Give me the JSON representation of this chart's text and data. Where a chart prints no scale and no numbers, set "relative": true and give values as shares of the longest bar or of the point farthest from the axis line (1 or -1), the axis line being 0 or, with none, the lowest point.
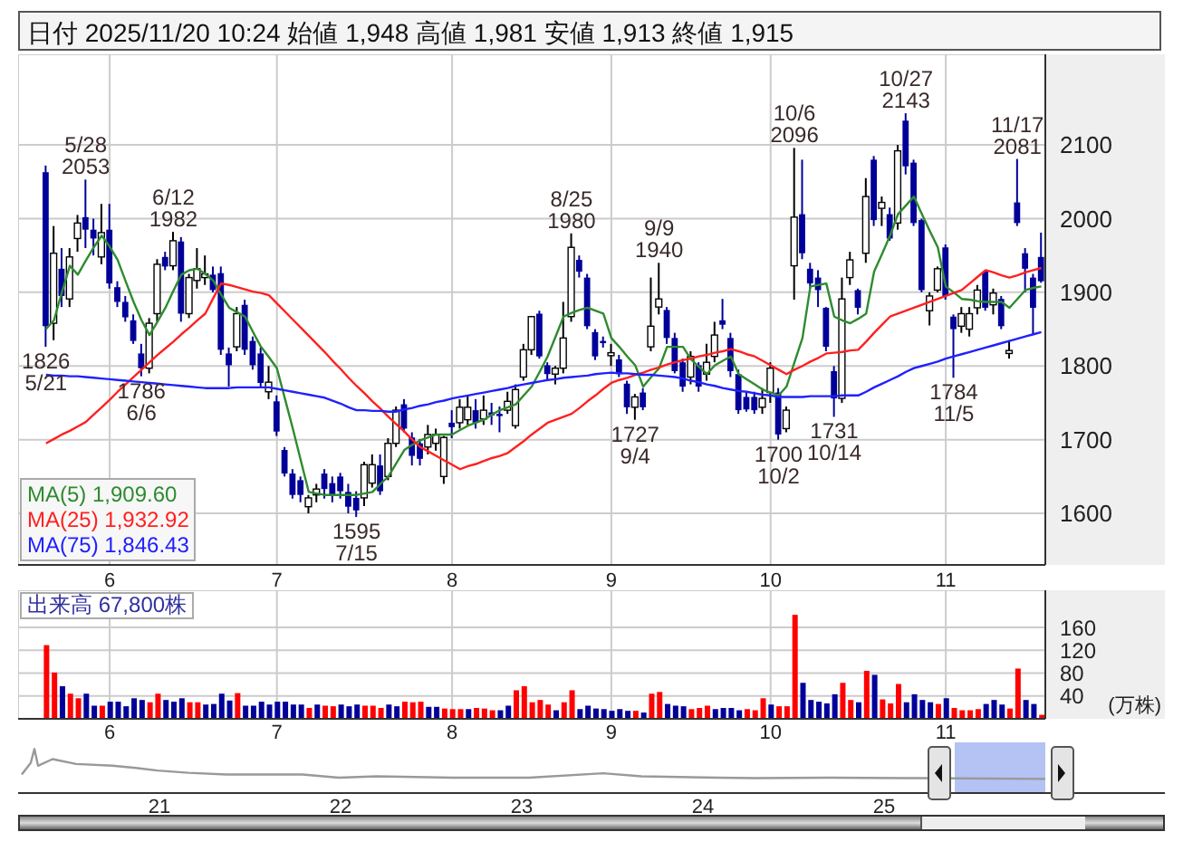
{
  "chart_data": [
    {
      "type": "candlestick",
      "title": "日付 2025/11/20 10:24 始値 1,948 高値 1,981 安値 1,913 終値 1,915",
      "categories": [
        null,
        null,
        null,
        null,
        null,
        null,
        null,
        null,
        "6",
        null,
        null,
        null,
        null,
        null,
        null,
        null,
        null,
        null,
        null,
        null,
        null,
        null,
        null,
        null,
        null,
        null,
        null,
        null,
        null,
        "7",
        null,
        null,
        null,
        null,
        null,
        null,
        null,
        null,
        null,
        null,
        null,
        null,
        null,
        null,
        null,
        null,
        null,
        null,
        null,
        null,
        null,
        "8",
        null,
        null,
        null,
        null,
        null,
        null,
        null,
        null,
        null,
        null,
        null,
        null,
        null,
        null,
        null,
        null,
        null,
        null,
        null,
        "9",
        null,
        null,
        null,
        null,
        null,
        null,
        null,
        null,
        null,
        null,
        null,
        null,
        null,
        null,
        null,
        null,
        null,
        null,
        null,
        "10",
        null,
        null,
        null,
        null,
        null,
        null,
        null,
        null,
        null,
        null,
        null,
        null,
        null,
        null,
        null,
        null,
        null,
        null,
        null,
        null,
        null,
        "11",
        null,
        null,
        null,
        null,
        null,
        null,
        null,
        null,
        null,
        null,
        null,
        null
      ],
      "ohlc": [
        [
          2063,
          2072,
          1826,
          1854
        ],
        [
          1858,
          1990,
          1835,
          1953
        ],
        [
          1932,
          1960,
          1880,
          1895
        ],
        [
          1891,
          1960,
          1880,
          1948
        ],
        [
          1973,
          2005,
          1955,
          1994
        ],
        [
          2002,
          2053,
          1960,
          1985
        ],
        [
          1985,
          2000,
          1950,
          1973
        ],
        [
          1948,
          2020,
          1938,
          1981
        ],
        [
          1985,
          2020,
          1905,
          1912
        ],
        [
          1907,
          1915,
          1880,
          1887
        ],
        [
          1887,
          1895,
          1860,
          1866
        ],
        [
          1862,
          1870,
          1830,
          1834
        ],
        [
          1817,
          1830,
          1786,
          1797
        ],
        [
          1797,
          1865,
          1790,
          1858
        ],
        [
          1871,
          1945,
          1860,
          1938
        ],
        [
          1948,
          1955,
          1930,
          1935
        ],
        [
          1936,
          1982,
          1930,
          1970
        ],
        [
          1969,
          1975,
          1860,
          1871
        ],
        [
          1871,
          1925,
          1865,
          1920
        ],
        [
          1916,
          1960,
          1905,
          1932
        ],
        [
          1920,
          1950,
          1910,
          1925
        ],
        [
          1924,
          1935,
          1900,
          1903
        ],
        [
          1926,
          1935,
          1815,
          1822
        ],
        [
          1817,
          1825,
          1772,
          1801
        ],
        [
          1826,
          1880,
          1820,
          1871
        ],
        [
          1883,
          1890,
          1815,
          1822
        ],
        [
          1834,
          1840,
          1795,
          1801
        ],
        [
          1817,
          1825,
          1770,
          1777
        ],
        [
          1765,
          1800,
          1755,
          1778
        ],
        [
          1752,
          1760,
          1705,
          1711
        ],
        [
          1686,
          1690,
          1650,
          1654
        ],
        [
          1654,
          1660,
          1620,
          1625
        ],
        [
          1645,
          1650,
          1615,
          1625
        ],
        [
          1609,
          1625,
          1600,
          1621
        ],
        [
          1625,
          1640,
          1615,
          1633
        ],
        [
          1654,
          1660,
          1620,
          1633
        ],
        [
          1641,
          1650,
          1615,
          1625
        ],
        [
          1650,
          1655,
          1620,
          1630
        ],
        [
          1629,
          1640,
          1600,
          1609
        ],
        [
          1621,
          1630,
          1595,
          1604
        ],
        [
          1621,
          1670,
          1610,
          1666
        ],
        [
          1641,
          1680,
          1635,
          1666
        ],
        [
          1665,
          1680,
          1625,
          1630
        ],
        [
          1650,
          1702,
          1645,
          1695
        ],
        [
          1695,
          1745,
          1690,
          1740
        ],
        [
          1748,
          1755,
          1710,
          1715
        ],
        [
          1703,
          1710,
          1665,
          1678
        ],
        [
          1695,
          1701,
          1665,
          1674
        ],
        [
          1690,
          1720,
          1680,
          1707
        ],
        [
          1695,
          1715,
          1685,
          1707
        ],
        [
          1650,
          1705,
          1640,
          1703
        ],
        [
          1723,
          1740,
          1702,
          1717
        ],
        [
          1723,
          1755,
          1715,
          1744
        ],
        [
          1727,
          1760,
          1720,
          1744
        ],
        [
          1740,
          1755,
          1715,
          1723
        ],
        [
          1728,
          1760,
          1720,
          1740
        ],
        [
          1737,
          1750,
          1720,
          1733
        ],
        [
          1735,
          1745,
          1710,
          1732
        ],
        [
          1740,
          1765,
          1735,
          1752
        ],
        [
          1719,
          1775,
          1715,
          1768
        ],
        [
          1785,
          1830,
          1780,
          1822
        ],
        [
          1822,
          1868,
          1815,
          1867
        ],
        [
          1871,
          1875,
          1810,
          1813
        ],
        [
          1801,
          1805,
          1780,
          1789
        ],
        [
          1789,
          1800,
          1775,
          1797
        ],
        [
          1797,
          1887,
          1790,
          1838
        ],
        [
          1867,
          1980,
          1860,
          1961
        ],
        [
          1944,
          1950,
          1920,
          1928
        ],
        [
          1920,
          1925,
          1850,
          1854
        ],
        [
          1846,
          1850,
          1808,
          1813
        ],
        [
          1834,
          1840,
          1825,
          1831
        ],
        [
          1814,
          1830,
          1800,
          1818
        ],
        [
          1809,
          1815,
          1785,
          1789
        ],
        [
          1776,
          1780,
          1735,
          1744
        ],
        [
          1744,
          1762,
          1727,
          1758
        ],
        [
          1764,
          1770,
          1740,
          1744
        ],
        [
          1826,
          1920,
          1820,
          1854
        ],
        [
          1880,
          1940,
          1870,
          1891
        ],
        [
          1876,
          1880,
          1830,
          1838
        ],
        [
          1838,
          1845,
          1790,
          1793
        ],
        [
          1805,
          1810,
          1765,
          1772
        ],
        [
          1785,
          1820,
          1775,
          1813
        ],
        [
          1801,
          1805,
          1765,
          1772
        ],
        [
          1789,
          1830,
          1780,
          1805
        ],
        [
          1813,
          1860,
          1805,
          1842
        ],
        [
          1862,
          1891,
          1850,
          1856
        ],
        [
          1838,
          1845,
          1785,
          1793
        ],
        [
          1789,
          1795,
          1735,
          1740
        ],
        [
          1758,
          1765,
          1738,
          1741
        ],
        [
          1758,
          1765,
          1735,
          1740
        ],
        [
          1744,
          1770,
          1735,
          1756
        ],
        [
          1764,
          1805,
          1750,
          1797
        ],
        [
          1764,
          1770,
          1700,
          1707
        ],
        [
          1715,
          1745,
          1710,
          1740
        ],
        [
          1936,
          2096,
          1890,
          2002
        ],
        [
          2006,
          2080,
          1945,
          1953
        ],
        [
          1932,
          1940,
          1905,
          1912
        ],
        [
          1920,
          1930,
          1880,
          1903
        ],
        [
          1879,
          1880,
          1820,
          1826
        ],
        [
          1793,
          1800,
          1731,
          1756
        ],
        [
          1756,
          1920,
          1750,
          1891
        ],
        [
          1920,
          1955,
          1910,
          1944
        ],
        [
          1903,
          1905,
          1870,
          1879
        ],
        [
          1953,
          2055,
          1940,
          2030
        ],
        [
          2080,
          2085,
          1990,
          1998
        ],
        [
          2014,
          2030,
          1990,
          2022
        ],
        [
          2006,
          2015,
          1970,
          1973
        ],
        [
          1994,
          2100,
          1985,
          2092
        ],
        [
          2133,
          2143,
          2060,
          2071
        ],
        [
          2076,
          2080,
          1990,
          1994
        ],
        [
          1998,
          2000,
          1900,
          1903
        ],
        [
          1875,
          1900,
          1855,
          1895
        ],
        [
          1903,
          1935,
          1900,
          1932
        ],
        [
          1961,
          1965,
          1890,
          1895
        ],
        [
          1867,
          1870,
          1784,
          1850
        ],
        [
          1854,
          1880,
          1845,
          1871
        ],
        [
          1850,
          1880,
          1840,
          1871
        ],
        [
          1879,
          1910,
          1870,
          1903
        ],
        [
          1928,
          1930,
          1875,
          1879
        ],
        [
          1883,
          1905,
          1870,
          1899
        ],
        [
          1891,
          1895,
          1850,
          1854
        ],
        [
          1817,
          1835,
          1810,
          1821
        ],
        [
          2022,
          2081,
          1990,
          1994
        ],
        [
          1953,
          1960,
          1900,
          1932
        ],
        [
          1920,
          1925,
          1842,
          1879
        ],
        [
          1948,
          1981,
          1913,
          1915
        ]
      ],
      "colors": [
        "#000099",
        "#ffffff",
        "#000099",
        "#ffffff",
        "#ffffff",
        "#000099",
        "#000099",
        "#ffffff",
        "#000099",
        "#000099",
        "#000099",
        "#000099",
        "#000099",
        "#ffffff",
        "#ffffff",
        "#000099",
        "#ffffff",
        "#000099",
        "#ffffff",
        "#ffffff",
        "#ffffff",
        "#000099",
        "#000099",
        "#000099",
        "#ffffff",
        "#000099",
        "#000099",
        "#000099",
        "#ffffff",
        "#000099",
        "#000099",
        "#000099",
        "#000099",
        "#ffffff",
        "#ffffff",
        "#000099",
        "#000099",
        "#000099",
        "#000099",
        "#000099",
        "#ffffff",
        "#ffffff",
        "#000099",
        "#ffffff",
        "#ffffff",
        "#000099",
        "#000099",
        "#000099",
        "#ffffff",
        "#ffffff",
        "#ffffff",
        "#000099",
        "#ffffff",
        "#ffffff",
        "#000099",
        "#ffffff",
        "#000099",
        "#000099",
        "#ffffff",
        "#ffffff",
        "#ffffff",
        "#ffffff",
        "#000099",
        "#000099",
        "#ffffff",
        "#ffffff",
        "#ffffff",
        "#000099",
        "#000099",
        "#000099",
        "#000099",
        "#ffffff",
        "#000099",
        "#000099",
        "#ffffff",
        "#000099",
        "#ffffff",
        "#ffffff",
        "#000099",
        "#000099",
        "#000099",
        "#ffffff",
        "#000099",
        "#ffffff",
        "#ffffff",
        "#000099",
        "#000099",
        "#000099",
        "#000099",
        "#000099",
        "#ffffff",
        "#ffffff",
        "#000099",
        "#ffffff",
        "#ffffff",
        "#000099",
        "#000099",
        "#000099",
        "#000099",
        "#000099",
        "#ffffff",
        "#ffffff",
        "#000099",
        "#ffffff",
        "#000099",
        "#ffffff",
        "#000099",
        "#ffffff",
        "#000099",
        "#000099",
        "#000099",
        "#ffffff",
        "#ffffff",
        "#000099",
        "#000099",
        "#ffffff",
        "#ffffff",
        "#ffffff",
        "#000099",
        "#ffffff",
        "#000099",
        "#ffffff",
        "#000099",
        "#000099",
        "#000099",
        "#000099"
      ],
      "series": [
        {
          "type": "line",
          "name": "MA(5) 1,909.60",
          "color": "#2e8b2e",
          "values": [
            1850,
            1862,
            1900,
            1936,
            1924,
            1943,
            1961,
            1977,
            1962,
            1944,
            1915,
            1887,
            1862,
            1842,
            1860,
            1879,
            1902,
            1924,
            1930,
            1932,
            1925,
            1916,
            1897,
            1879,
            1873,
            1867,
            1846,
            1826,
            1812,
            1797,
            1756,
            1715,
            1672,
            1629,
            1627,
            1625,
            1625,
            1625,
            1625,
            1625,
            1627,
            1629,
            1640,
            1650,
            1668,
            1686,
            1693,
            1699,
            1703,
            1707,
            1707,
            1707,
            1713,
            1719,
            1723,
            1727,
            1734,
            1740,
            1744,
            1748,
            1760,
            1772,
            1792,
            1813,
            1840,
            1867,
            1872,
            1876,
            1879,
            1875,
            1871,
            1838,
            1826,
            1813,
            1801,
            1772,
            1785,
            1797,
            1826,
            1826,
            1826,
            1809,
            1799,
            1789,
            1801,
            1807,
            1813,
            1789,
            1782,
            1775,
            1768,
            1764,
            1760,
            1772,
            1805,
            1838,
            1908,
            1910,
            1912,
            1867,
            1862,
            1858,
            1864,
            1871,
            1928,
            1952,
            1977,
            2006,
            2018,
            2030,
            2006,
            1983,
            1961,
            1908,
            1900,
            1891,
            1890,
            1888,
            1887,
            1887,
            1887,
            1879,
            1891,
            1903,
            1906,
            1908
          ]
        },
        {
          "type": "line",
          "name": "MA(25) 1,932.92",
          "color": "#ff2020",
          "values": [
            1695,
            1701,
            1707,
            1712,
            1718,
            1724,
            1734,
            1744,
            1754,
            1765,
            1775,
            1785,
            1795,
            1805,
            1815,
            1824,
            1833,
            1843,
            1852,
            1862,
            1871,
            1892,
            1912,
            1910,
            1907,
            1904,
            1901,
            1899,
            1896,
            1885,
            1874,
            1863,
            1852,
            1841,
            1830,
            1819,
            1807,
            1796,
            1784,
            1773,
            1763,
            1752,
            1742,
            1731,
            1721,
            1711,
            1700,
            1690,
            1684,
            1678,
            1672,
            1666,
            1660,
            1664,
            1667,
            1671,
            1675,
            1678,
            1682,
            1690,
            1698,
            1707,
            1715,
            1723,
            1727,
            1731,
            1735,
            1743,
            1752,
            1760,
            1769,
            1777,
            1781,
            1784,
            1788,
            1791,
            1795,
            1798,
            1802,
            1805,
            1808,
            1810,
            1813,
            1815,
            1818,
            1820,
            1823,
            1820,
            1816,
            1813,
            1807,
            1801,
            1795,
            1789,
            1795,
            1800,
            1806,
            1811,
            1817,
            1818,
            1819,
            1821,
            1822,
            1833,
            1845,
            1856,
            1867,
            1871,
            1875,
            1879,
            1883,
            1887,
            1891,
            1895,
            1899,
            1903,
            1912,
            1921,
            1930,
            1927,
            1923,
            1920,
            1923,
            1927,
            1930,
            1933
          ]
        },
        {
          "type": "line",
          "name": "MA(75) 1,846.43",
          "color": "#2020ff",
          "values": [
            1788,
            1787,
            1787,
            1786,
            1786,
            1785,
            1784,
            1783,
            1782,
            1781,
            1780,
            1779,
            1778,
            1777,
            1776,
            1775,
            1774,
            1773,
            1772,
            1771,
            1770,
            1770,
            1770,
            1770,
            1771,
            1771,
            1771,
            1771,
            1771,
            1769,
            1767,
            1765,
            1763,
            1761,
            1759,
            1757,
            1753,
            1749,
            1744,
            1740,
            1740,
            1739,
            1739,
            1738,
            1738,
            1741,
            1743,
            1746,
            1748,
            1751,
            1753,
            1756,
            1758,
            1760,
            1762,
            1764,
            1766,
            1768,
            1770,
            1773,
            1775,
            1777,
            1779,
            1781,
            1782,
            1784,
            1785,
            1786,
            1787,
            1789,
            1790,
            1791,
            1790,
            1790,
            1789,
            1788,
            1788,
            1787,
            1786,
            1785,
            1783,
            1780,
            1778,
            1775,
            1773,
            1770,
            1768,
            1766,
            1765,
            1763,
            1761,
            1760,
            1758,
            1758,
            1758,
            1758,
            1759,
            1759,
            1759,
            1759,
            1760,
            1760,
            1760,
            1765,
            1771,
            1776,
            1781,
            1786,
            1792,
            1797,
            1800,
            1803,
            1806,
            1810,
            1813,
            1816,
            1819,
            1822,
            1825,
            1828,
            1831,
            1834,
            1837,
            1840,
            1843,
            1846
          ]
        }
      ],
      "ylim": [
        1530,
        2223
      ],
      "yticks": [
        1600,
        1700,
        1800,
        1900,
        2000,
        2100
      ],
      "grid": true,
      "legend": "bottom left",
      "annotations": [
        {
          "text": "5/28\n2053",
          "y": 2053
        },
        {
          "text": "6/12\n1982",
          "y": 1982
        },
        {
          "text": "8/25\n1980",
          "y": 1980
        },
        {
          "text": "9/9\n1940",
          "y": 1940
        },
        {
          "text": "10/6\n2096",
          "y": 2096
        },
        {
          "text": "10/27\n2143",
          "y": 2143
        },
        {
          "text": "11/17\n2081",
          "y": 2081
        },
        {
          "text": "1826\n5/21",
          "y": 1826
        },
        {
          "text": "1786\n6/6",
          "y": 1786
        },
        {
          "text": "1595\n7/15",
          "y": 1595
        },
        {
          "text": "1727\n9/4",
          "y": 1727
        },
        {
          "text": "1700\n10/2",
          "y": 1700
        },
        {
          "text": "1731\n10/14",
          "y": 1731
        },
        {
          "text": "1784\n11/5",
          "y": 1784
        }
      ]
    },
    {
      "type": "bar",
      "title": "出来高 67,800株",
      "ylabel": "(万株)",
      "categories": [
        null,
        null,
        null,
        null,
        null,
        null,
        null,
        null,
        "6",
        null,
        null,
        null,
        null,
        null,
        null,
        null,
        null,
        null,
        null,
        null,
        null,
        null,
        null,
        null,
        null,
        null,
        null,
        null,
        null,
        "7",
        null,
        null,
        null,
        null,
        null,
        null,
        null,
        null,
        null,
        null,
        null,
        null,
        null,
        null,
        null,
        null,
        null,
        null,
        null,
        null,
        null,
        "8",
        null,
        null,
        null,
        null,
        null,
        null,
        null,
        null,
        null,
        null,
        null,
        null,
        null,
        null,
        null,
        null,
        null,
        null,
        null,
        "9",
        null,
        null,
        null,
        null,
        null,
        null,
        null,
        null,
        null,
        null,
        null,
        null,
        null,
        null,
        null,
        null,
        null,
        null,
        null,
        "10",
        null,
        null,
        null,
        null,
        null,
        null,
        null,
        null,
        null,
        null,
        null,
        null,
        null,
        null,
        null,
        null,
        null,
        null,
        null,
        null,
        null,
        "11",
        null,
        null,
        null,
        null,
        null,
        null,
        null,
        null,
        null,
        null,
        null,
        null
      ],
      "values": [
        129,
        81,
        57,
        44,
        36,
        44,
        23,
        23,
        30,
        30,
        22,
        36,
        33,
        29,
        44,
        33,
        30,
        36,
        29,
        29,
        25,
        26,
        44,
        32,
        45,
        23,
        23,
        30,
        25,
        30,
        30,
        25,
        25,
        19,
        25,
        23,
        22,
        25,
        22,
        25,
        23,
        23,
        19,
        25,
        22,
        30,
        29,
        30,
        21,
        21,
        18,
        17,
        17,
        17,
        19,
        18,
        15,
        15,
        23,
        50,
        57,
        29,
        33,
        25,
        15,
        29,
        50,
        17,
        23,
        18,
        17,
        14,
        17,
        14,
        14,
        11,
        44,
        47,
        26,
        23,
        22,
        17,
        19,
        23,
        17,
        19,
        19,
        15,
        17,
        15,
        36,
        25,
        22,
        22,
        182,
        63,
        33,
        30,
        27,
        43,
        63,
        33,
        29,
        84,
        77,
        34,
        27,
        61,
        29,
        43,
        33,
        29,
        26,
        36,
        19,
        15,
        15,
        17,
        26,
        33,
        25,
        18,
        88,
        33,
        26,
        7
      ],
      "colors": [
        "#ff0000",
        "#ff0000",
        "#000099",
        "#ff0000",
        "#ff0000",
        "#000099",
        "#000099",
        "#ff0000",
        "#000099",
        "#000099",
        "#000099",
        "#000099",
        "#000099",
        "#ff0000",
        "#ff0000",
        "#000099",
        "#000099",
        "#000099",
        "#ff0000",
        "#ff0000",
        "#000099",
        "#000099",
        "#000099",
        "#000099",
        "#ff0000",
        "#000099",
        "#000099",
        "#000099",
        "#000099",
        "#000099",
        "#000099",
        "#000099",
        "#000099",
        "#ff0000",
        "#000099",
        "#ff0000",
        "#ff0000",
        "#000099",
        "#000099",
        "#000099",
        "#ff0000",
        "#ff0000",
        "#ff0000",
        "#000099",
        "#000099",
        "#ff0000",
        "#ff0000",
        "#ff0000",
        "#000099",
        "#000099",
        "#ff0000",
        "#ff0000",
        "#ff0000",
        "#000099",
        "#ff0000",
        "#ff0000",
        "#ff0000",
        "#000099",
        "#000099",
        "#ff0000",
        "#ff0000",
        "#ff0000",
        "#ff0000",
        "#ff0000",
        "#000099",
        "#ff0000",
        "#ff0000",
        "#000099",
        "#000099",
        "#000099",
        "#000099",
        "#000099",
        "#000099",
        "#000099",
        "#ff0000",
        "#000099",
        "#ff0000",
        "#ff0000",
        "#000099",
        "#000099",
        "#000099",
        "#ff0000",
        "#ff0000",
        "#ff0000",
        "#000099",
        "#000099",
        "#000099",
        "#000099",
        "#ff0000",
        "#ff0000",
        "#ff0000",
        "#000099",
        "#ff0000",
        "#ff0000",
        "#ff0000",
        "#000099",
        "#000099",
        "#000099",
        "#000099",
        "#000099",
        "#ff0000",
        "#ff0000",
        "#000099",
        "#ff0000",
        "#000099",
        "#ff0000",
        "#ff0000",
        "#ff0000",
        "#000099",
        "#000099",
        "#000099",
        "#000099",
        "#ff0000",
        "#000099",
        "#ff0000",
        "#ff0000",
        "#ff0000",
        "#ff0000",
        "#000099",
        "#000099",
        "#000099",
        "#ff0000",
        "#ff0000",
        "#000099",
        "#000099",
        "#ff0000"
      ],
      "ylim": [
        0,
        225
      ],
      "yticks": [
        40,
        80,
        120,
        160
      ],
      "grid": true
    },
    {
      "type": "line",
      "relative": true,
      "color": "#999999",
      "x": [
        20.24,
        20.29,
        20.31,
        20.33,
        20.41,
        20.54,
        20.74,
        20.87,
        20.99,
        21.16,
        21.37,
        21.79,
        21.99,
        22.2,
        22.62,
        23.04,
        23.45,
        23.66,
        24.08,
        24.29,
        24.7,
        25.12,
        25.89
      ],
      "values": [
        0.42,
        0.69,
        1,
        0.62,
        0.77,
        0.66,
        0.62,
        0.57,
        0.51,
        0.46,
        0.42,
        0.42,
        0.35,
        0.38,
        0.35,
        0.35,
        0.45,
        0.38,
        0.35,
        0.34,
        0.35,
        0.34,
        0.32
      ],
      "xlim": [
        20.22,
        26.55
      ],
      "xticks": [
        21,
        22,
        23,
        24,
        25
      ],
      "bands": [
        {
          "axis": "x",
          "from": 25.39,
          "to": 25.89,
          "color": "#b4c2f4"
        }
      ],
      "tick_labels": "x"
    }
  ]
}
